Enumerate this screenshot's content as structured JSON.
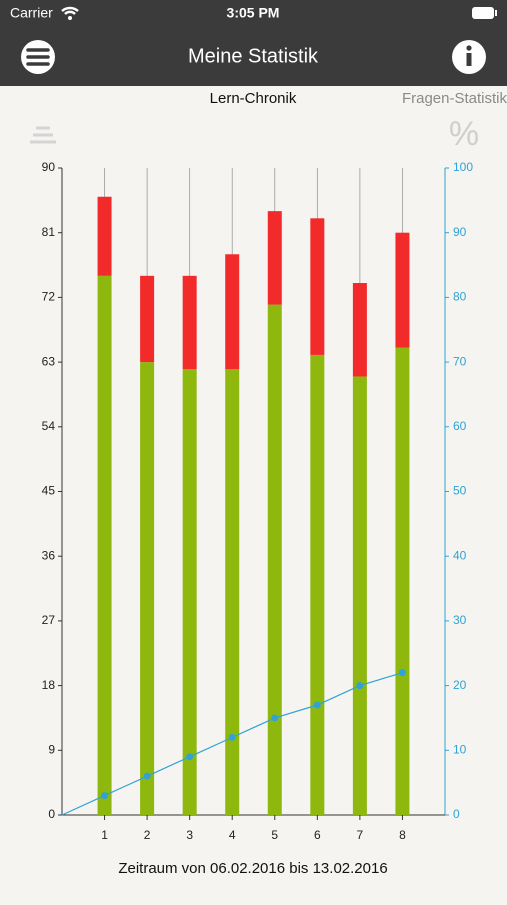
{
  "status": {
    "carrier": "Carrier",
    "time": "3:05 PM"
  },
  "nav": {
    "title": "Meine Statistik"
  },
  "tabs": [
    "Lern-Chronik",
    "Fragen-Statistik"
  ],
  "percent_icon": "%",
  "footer": "Zeitraum von 06.02.2016 bis 13.02.2016",
  "chart_data": {
    "type": "stacked_bar_line",
    "x": [
      1,
      2,
      3,
      4,
      5,
      6,
      7,
      8
    ],
    "xlim": [
      0,
      9
    ],
    "xticks": [
      1,
      2,
      3,
      4,
      5,
      6,
      7,
      8
    ],
    "ylim": [
      0,
      90
    ],
    "yticks": [
      0,
      9,
      18,
      27,
      36,
      45,
      54,
      63,
      72,
      81,
      90
    ],
    "y2lim": [
      0,
      100
    ],
    "y2ticks": [
      0,
      10,
      20,
      30,
      40,
      50,
      60,
      70,
      80,
      90,
      100
    ],
    "grid": true,
    "series": [
      {
        "color": "#8fb80f",
        "values": [
          75,
          63,
          62,
          62,
          71,
          64,
          61,
          65
        ]
      },
      {
        "color": "#f22a2a",
        "values": [
          11,
          12,
          13,
          16,
          13,
          19,
          13,
          16
        ]
      },
      {
        "color": "#2fa3d6",
        "axis": "y2",
        "x": [
          0,
          1,
          2,
          3,
          4,
          5,
          6,
          7,
          8
        ],
        "values": [
          0,
          3,
          6,
          9,
          12,
          15,
          17,
          20,
          22
        ]
      }
    ]
  }
}
